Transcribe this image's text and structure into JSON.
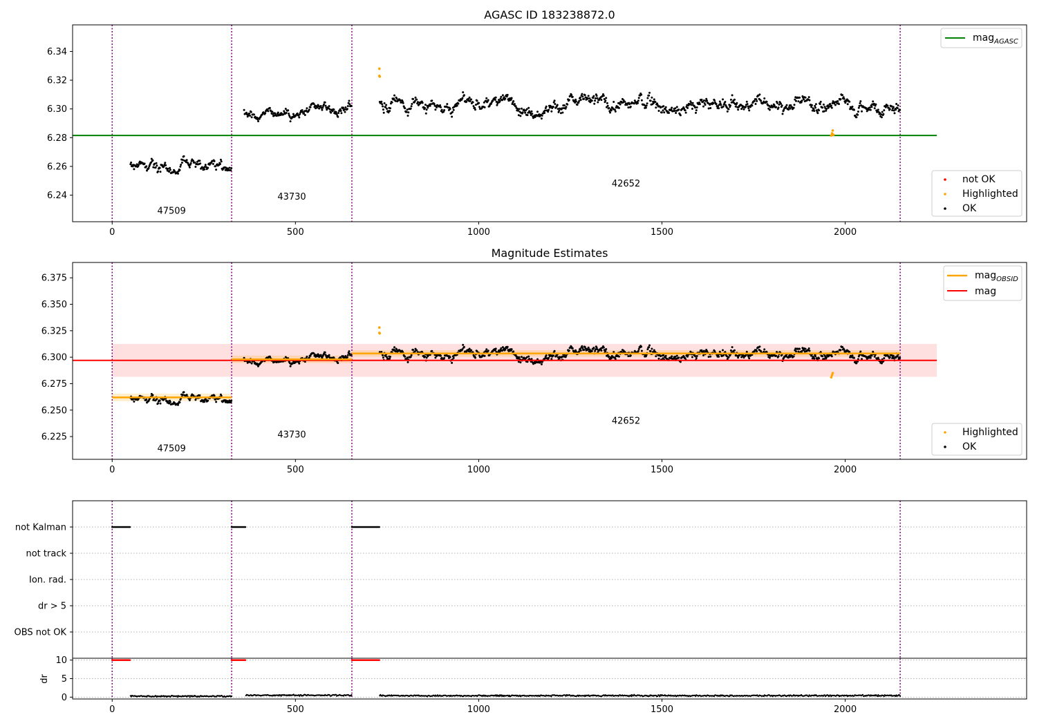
{
  "chart_data": [
    {
      "type": "scatter",
      "title": "AGASC ID 183238872.0",
      "xlabel": "",
      "ylabel": "",
      "xlim": [
        -108,
        2495
      ],
      "ylim": [
        6.2215,
        6.3585
      ],
      "xticks": [
        0,
        500,
        1000,
        1500,
        2000
      ],
      "yticks": [
        6.24,
        6.26,
        6.28,
        6.3,
        6.32,
        6.34
      ],
      "grid": false,
      "obsid_boundaries": [
        0,
        326,
        654,
        2150
      ],
      "obsids": [
        {
          "label": "47509",
          "x": 162,
          "y": 6.227
        },
        {
          "label": "43730",
          "x": 490,
          "y": 6.237
        },
        {
          "label": "42652",
          "x": 1402,
          "y": 6.246
        }
      ],
      "agasc_mag": 6.2815,
      "line_legend": {
        "label": "mag",
        "sub": "AGASC",
        "color": "#008000",
        "position": "top-right"
      },
      "point_legend": {
        "position": "lower-right",
        "entries": [
          {
            "label": "not OK",
            "color": "#ff0000"
          },
          {
            "label": "Highlighted",
            "color": "#ffa500"
          },
          {
            "label": "OK",
            "color": "#000000"
          }
        ]
      },
      "segments": [
        {
          "x_start": 50,
          "x_end": 326,
          "mean": 6.262,
          "noise": 0.0045,
          "color": "#000000"
        },
        {
          "x_start": 360,
          "x_end": 654,
          "mean": 6.299,
          "noise": 0.004,
          "color": "#000000"
        },
        {
          "x_start": 730,
          "x_end": 2150,
          "mean": 6.303,
          "noise": 0.0055,
          "color": "#000000"
        }
      ],
      "highlighted_points": [
        {
          "x": 729,
          "y": 6.328
        },
        {
          "x": 729,
          "y": 6.323
        },
        {
          "x": 730,
          "y": 6.3225
        },
        {
          "x": 1962,
          "y": 6.2815
        },
        {
          "x": 1964,
          "y": 6.283
        },
        {
          "x": 1966,
          "y": 6.285
        },
        {
          "x": 1968,
          "y": 6.282
        }
      ]
    },
    {
      "type": "scatter",
      "title": "Magnitude Estimates",
      "xlabel": "",
      "ylabel": "",
      "xlim": [
        -108,
        2495
      ],
      "ylim": [
        6.2035,
        6.3895
      ],
      "xticks": [
        0,
        500,
        1000,
        1500,
        2000
      ],
      "yticks": [
        6.225,
        6.25,
        6.275,
        6.3,
        6.325,
        6.35,
        6.375
      ],
      "grid": false,
      "obsid_boundaries": [
        0,
        326,
        654,
        2150
      ],
      "obsids": [
        {
          "label": "47509",
          "x": 162,
          "y": 6.211
        },
        {
          "label": "43730",
          "x": 490,
          "y": 6.224
        },
        {
          "label": "42652",
          "x": 1402,
          "y": 6.237
        }
      ],
      "mag": 6.297,
      "mag_band": [
        6.2815,
        6.3125
      ],
      "mag_x_range": [
        0,
        2250
      ],
      "obsid_mags": [
        {
          "x_start": 0,
          "x_end": 326,
          "value": 6.262,
          "band": [
            6.2585,
            6.2655
          ]
        },
        {
          "x_start": 326,
          "x_end": 654,
          "value": 6.298,
          "band": [
            6.2945,
            6.3015
          ]
        },
        {
          "x_start": 654,
          "x_end": 2150,
          "value": 6.3035,
          "band": [
            6.3005,
            6.3065
          ]
        }
      ],
      "line_legend": {
        "position": "top-right",
        "entries": [
          {
            "label": "mag",
            "sub": "OBSID",
            "color": "#ffa500"
          },
          {
            "label": "mag",
            "sub": "",
            "color": "#ff0000"
          }
        ]
      },
      "point_legend": {
        "position": "lower-right",
        "entries": [
          {
            "label": "Highlighted",
            "color": "#ffa500"
          },
          {
            "label": "OK",
            "color": "#000000"
          }
        ]
      },
      "segments": [
        {
          "x_start": 50,
          "x_end": 326,
          "mean": 6.262,
          "noise": 0.0045,
          "color": "#000000"
        },
        {
          "x_start": 360,
          "x_end": 654,
          "mean": 6.299,
          "noise": 0.004,
          "color": "#000000"
        },
        {
          "x_start": 730,
          "x_end": 2150,
          "mean": 6.303,
          "noise": 0.0055,
          "color": "#000000"
        }
      ],
      "highlighted_points": [
        {
          "x": 729,
          "y": 6.328
        },
        {
          "x": 729,
          "y": 6.323
        },
        {
          "x": 730,
          "y": 6.3225
        },
        {
          "x": 1962,
          "y": 6.281
        },
        {
          "x": 1964,
          "y": 6.283
        },
        {
          "x": 1966,
          "y": 6.285
        }
      ]
    },
    {
      "type": "scatter",
      "title": "",
      "xlabel": "",
      "ylabel": "",
      "xlim": [
        -108,
        2495
      ],
      "grid": true,
      "categories": [
        "not Kalman",
        "not track",
        "Ion. rad.",
        "dr > 5",
        "OBS not OK"
      ],
      "obsid_boundaries": [
        0,
        326,
        654,
        2150
      ],
      "flagged_ranges": [
        {
          "category": "not Kalman",
          "x_start": 0,
          "x_end": 50
        },
        {
          "category": "not Kalman",
          "x_start": 326,
          "x_end": 365
        },
        {
          "category": "not Kalman",
          "x_start": 654,
          "x_end": 730
        }
      ]
    },
    {
      "type": "scatter",
      "title": "",
      "xlabel": "",
      "ylabel": "dr",
      "xlim": [
        -108,
        2495
      ],
      "ylim": [
        -0.5,
        10.5
      ],
      "xticks": [
        0,
        500,
        1000,
        1500,
        2000
      ],
      "yticks": [
        0,
        5,
        10
      ],
      "grid": true,
      "obsid_boundaries": [
        0,
        326,
        654,
        2150
      ],
      "clipped_ranges": [
        {
          "x_start": 0,
          "x_end": 50,
          "value": 10,
          "color": "#ff0000"
        },
        {
          "x_start": 326,
          "x_end": 365,
          "value": 10,
          "color": "#ff0000"
        },
        {
          "x_start": 654,
          "x_end": 730,
          "value": 10,
          "color": "#ff0000"
        }
      ],
      "dr_segments": [
        {
          "x_start": 50,
          "x_end": 326,
          "mean": 0.25
        },
        {
          "x_start": 365,
          "x_end": 654,
          "mean": 0.5
        },
        {
          "x_start": 730,
          "x_end": 2150,
          "mean": 0.4
        }
      ]
    }
  ]
}
